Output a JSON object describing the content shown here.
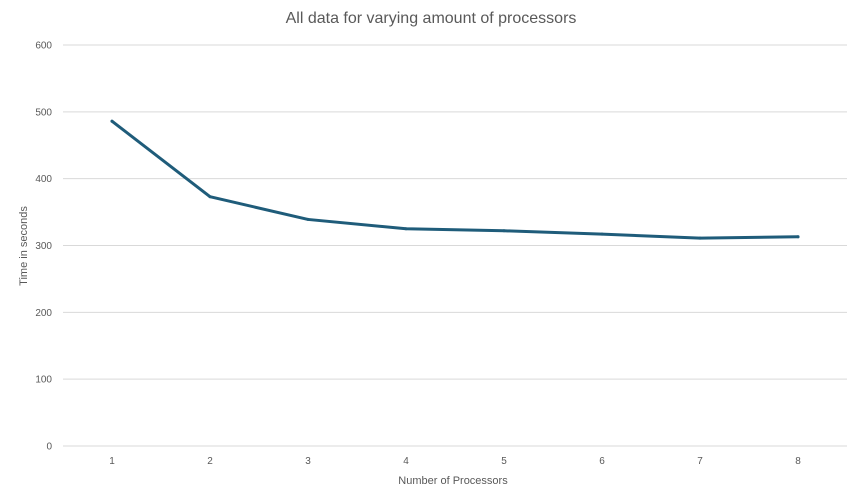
{
  "chart_data": {
    "type": "line",
    "title": "All data for varying amount of processors",
    "xlabel": "Number of Processors",
    "ylabel": "Time in seconds",
    "categories": [
      "1",
      "2",
      "3",
      "4",
      "5",
      "6",
      "7",
      "8"
    ],
    "series": [
      {
        "values": [
          486,
          373,
          339,
          325,
          322,
          317,
          311,
          313
        ]
      }
    ],
    "ylim": [
      0,
      600
    ],
    "yticks": [
      "0",
      "100",
      "200",
      "300",
      "400",
      "500",
      "600"
    ],
    "grid": true,
    "line_color": "#1f5c7a",
    "grid_color": "#d9d9d9",
    "text_color": "#595959"
  }
}
